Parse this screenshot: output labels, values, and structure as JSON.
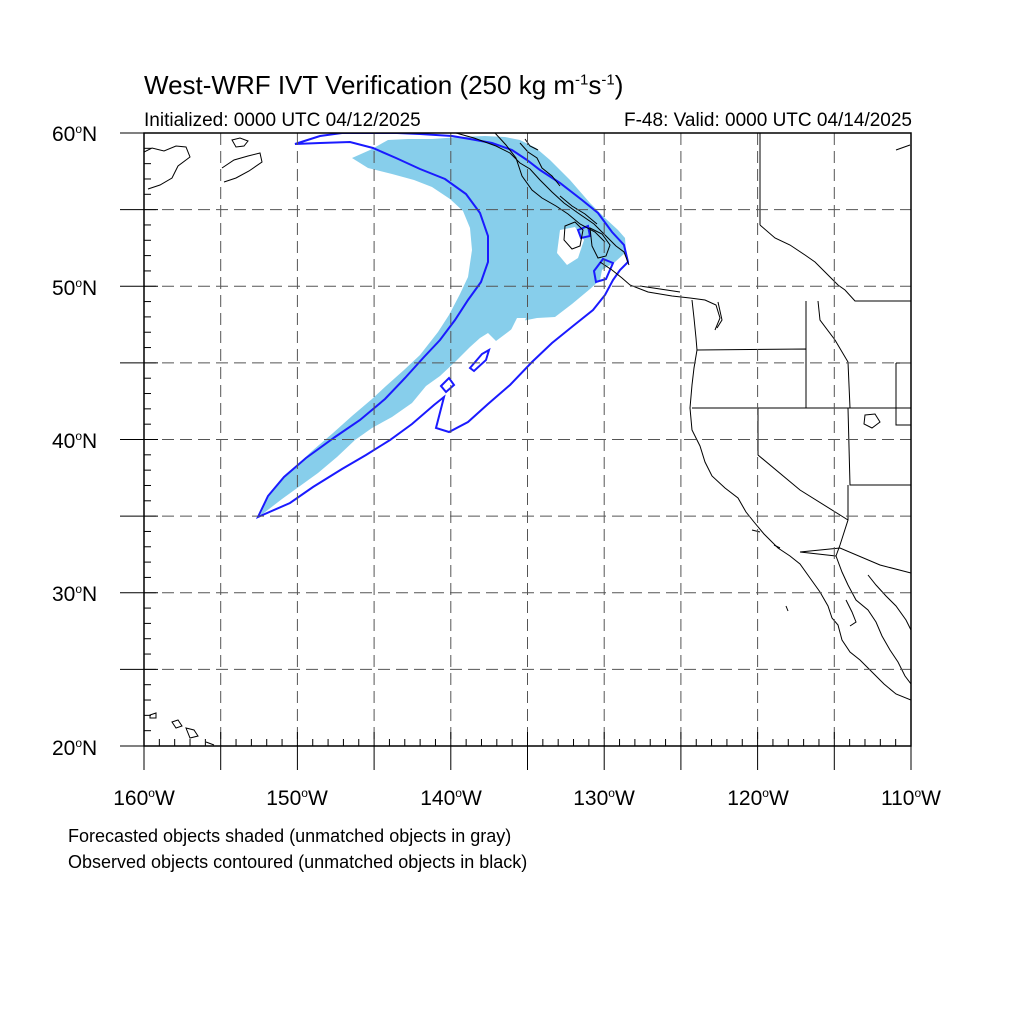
{
  "header": {
    "title_main": "West-WRF IVT Verification (250 kg m",
    "title_exp1": "-1",
    "title_mid": "s",
    "title_exp2": "-1",
    "title_end": ")",
    "init_text": "Initialized: 0000 UTC 04/12/2025",
    "valid_text": "F-48: Valid: 0000 UTC 04/14/2025"
  },
  "degree_symbol": "o",
  "lat_labels": [
    {
      "value": "60",
      "hem": "N"
    },
    {
      "value": "50",
      "hem": "N"
    },
    {
      "value": "40",
      "hem": "N"
    },
    {
      "value": "30",
      "hem": "N"
    },
    {
      "value": "20",
      "hem": "N"
    }
  ],
  "lon_labels": [
    {
      "value": "160",
      "hem": "W"
    },
    {
      "value": "150",
      "hem": "W"
    },
    {
      "value": "140",
      "hem": "W"
    },
    {
      "value": "130",
      "hem": "W"
    },
    {
      "value": "120",
      "hem": "W"
    },
    {
      "value": "110",
      "hem": "W"
    }
  ],
  "legend": {
    "forecast_note": "Forecasted objects shaded (unmatched objects in gray)",
    "observed_note": "Observed objects contoured (unmatched objects in black)"
  },
  "map": {
    "lon_range": [
      -160,
      -110
    ],
    "lat_range": [
      20,
      60
    ],
    "grid_lons": [
      -155,
      -150,
      -145,
      -140,
      -135,
      -130,
      -125,
      -120,
      -115
    ],
    "grid_lats": [
      25,
      30,
      35,
      40,
      45,
      50,
      55
    ],
    "forecast_fill_color": "#87ceeb",
    "observed_contour_color": "#1a1aff",
    "coast_color": "#000000"
  }
}
